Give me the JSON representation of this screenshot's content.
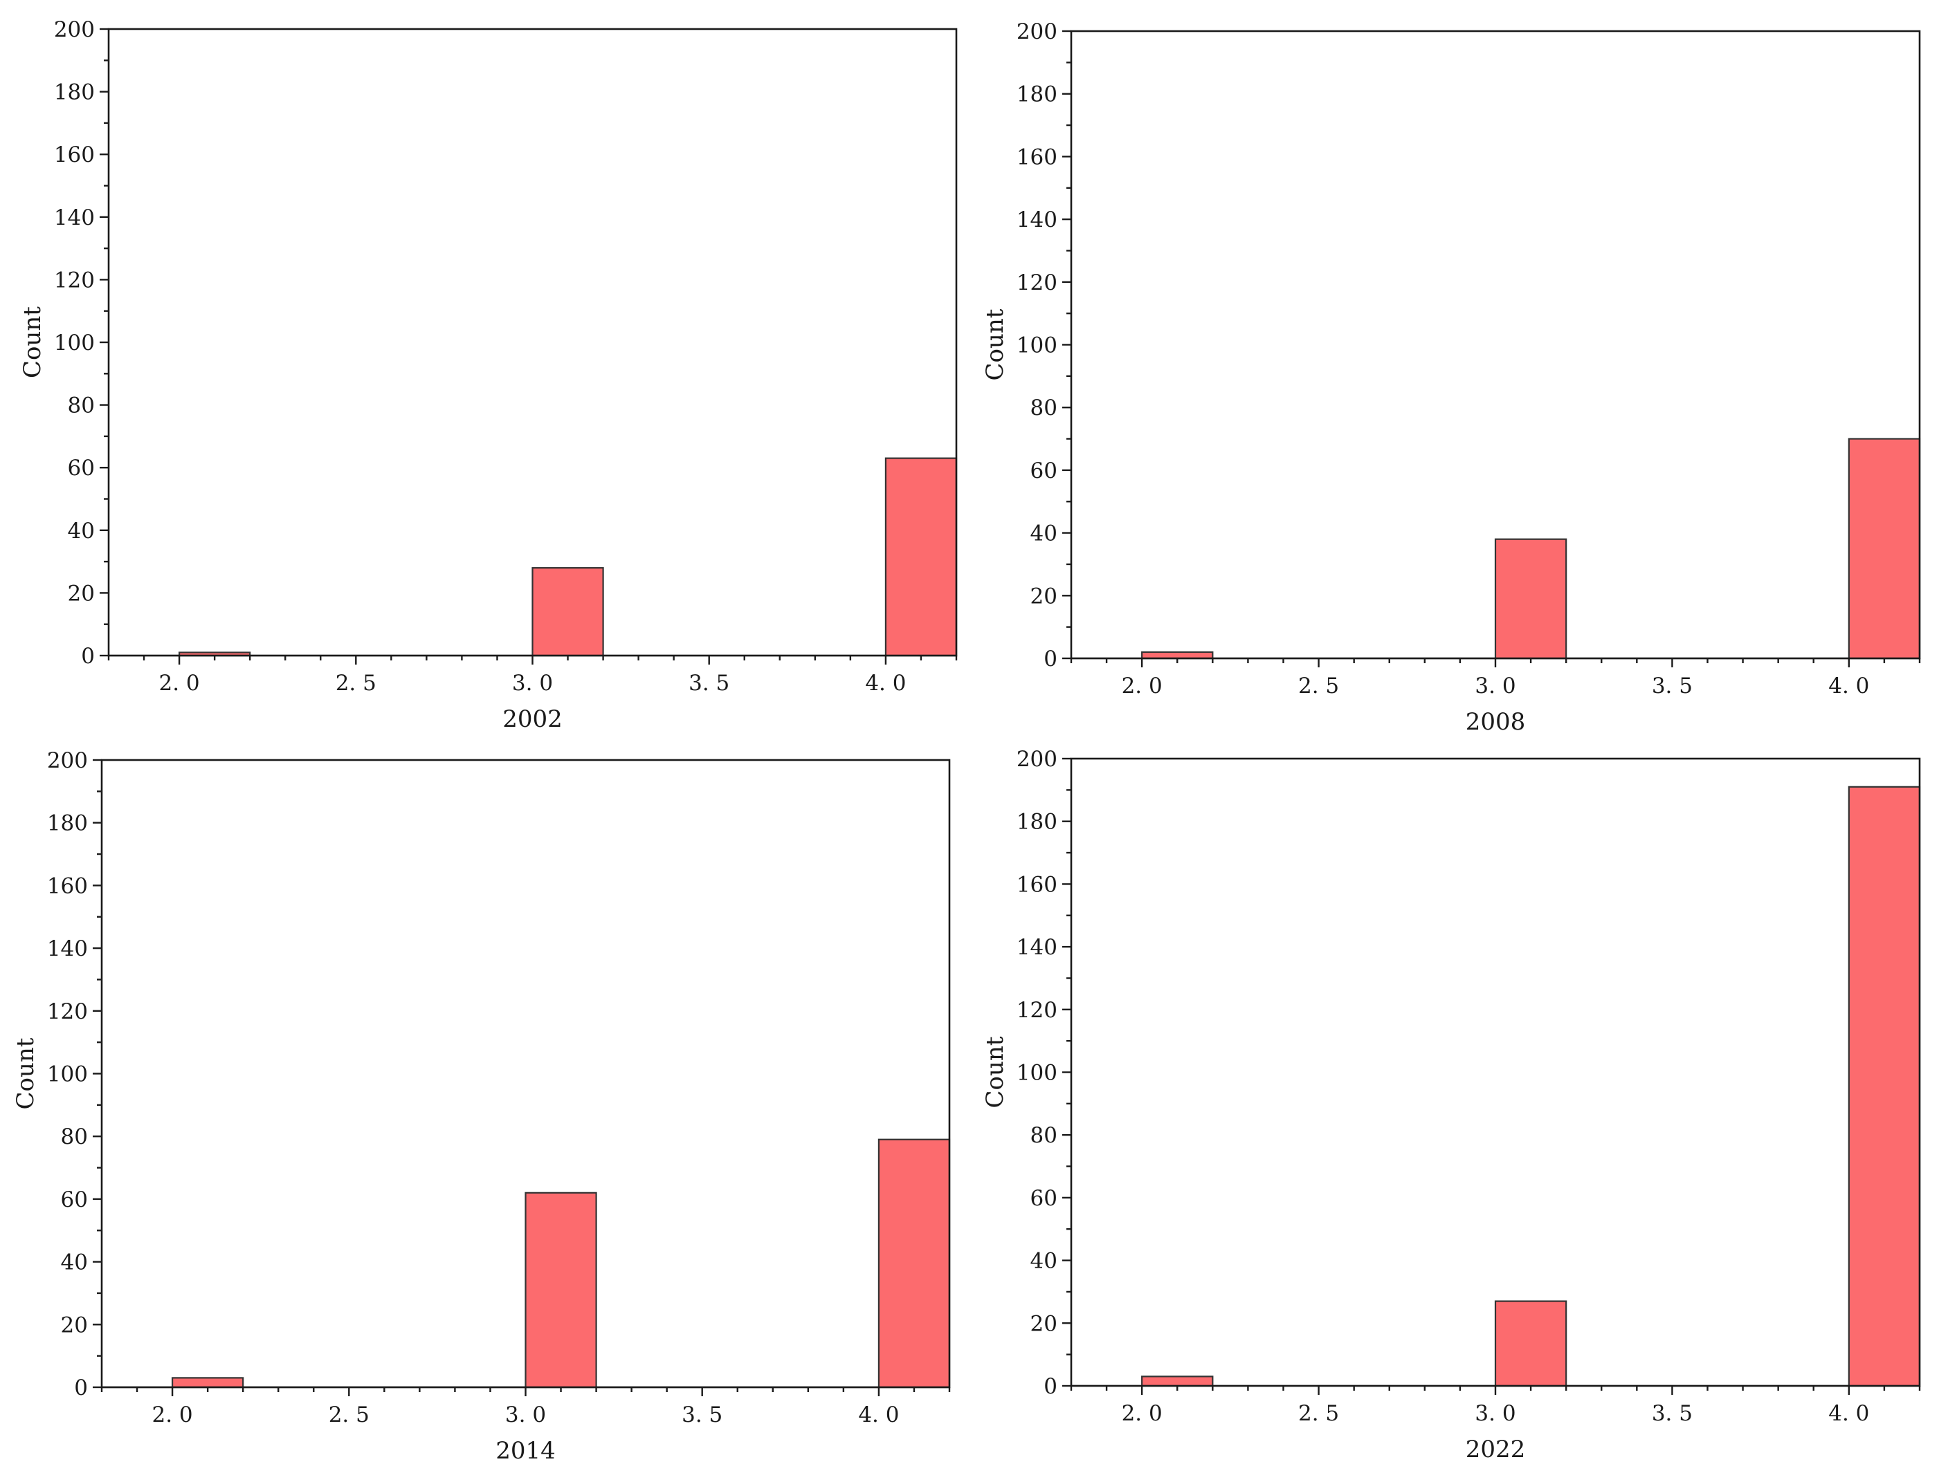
{
  "chart_data": [
    {
      "type": "bar",
      "xlabel": "2002",
      "ylabel": "Count",
      "xlim": [
        1.8,
        4.2
      ],
      "ylim": [
        0,
        200
      ],
      "xticks": [
        "2.0",
        "2.5",
        "3.0",
        "3.5",
        "4.0"
      ],
      "yticks": [
        "0",
        "20",
        "40",
        "60",
        "80",
        "100",
        "120",
        "140",
        "160",
        "180",
        "200"
      ],
      "bin_width": 0.2,
      "x": [
        2.0,
        3.0,
        4.0
      ],
      "values": [
        1,
        28,
        63
      ],
      "grid": false,
      "color": "#fc6b6e"
    },
    {
      "type": "bar",
      "xlabel": "2008",
      "ylabel": "Count",
      "xlim": [
        1.8,
        4.2
      ],
      "ylim": [
        0,
        200
      ],
      "xticks": [
        "2.0",
        "2.5",
        "3.0",
        "3.5",
        "4.0"
      ],
      "yticks": [
        "0",
        "20",
        "40",
        "60",
        "80",
        "100",
        "120",
        "140",
        "160",
        "180",
        "200"
      ],
      "bin_width": 0.2,
      "x": [
        2.0,
        3.0,
        4.0
      ],
      "values": [
        2,
        38,
        70
      ],
      "grid": false,
      "color": "#fc6b6e"
    },
    {
      "type": "bar",
      "xlabel": "2014",
      "ylabel": "Count",
      "xlim": [
        1.8,
        4.2
      ],
      "ylim": [
        0,
        200
      ],
      "xticks": [
        "2.0",
        "2.5",
        "3.0",
        "3.5",
        "4.0"
      ],
      "yticks": [
        "0",
        "20",
        "40",
        "60",
        "80",
        "100",
        "120",
        "140",
        "160",
        "180",
        "200"
      ],
      "bin_width": 0.2,
      "x": [
        2.0,
        3.0,
        4.0
      ],
      "values": [
        3,
        62,
        79
      ],
      "grid": false,
      "color": "#fc6b6e"
    },
    {
      "type": "bar",
      "xlabel": "2022",
      "ylabel": "Count",
      "xlim": [
        1.8,
        4.2
      ],
      "ylim": [
        0,
        200
      ],
      "xticks": [
        "2.0",
        "2.5",
        "3.0",
        "3.5",
        "4.0"
      ],
      "yticks": [
        "0",
        "20",
        "40",
        "60",
        "80",
        "100",
        "120",
        "140",
        "160",
        "180",
        "200"
      ],
      "bin_width": 0.2,
      "x": [
        2.0,
        3.0,
        4.0
      ],
      "values": [
        3,
        27,
        191
      ],
      "grid": false,
      "color": "#fc6b6e"
    }
  ]
}
